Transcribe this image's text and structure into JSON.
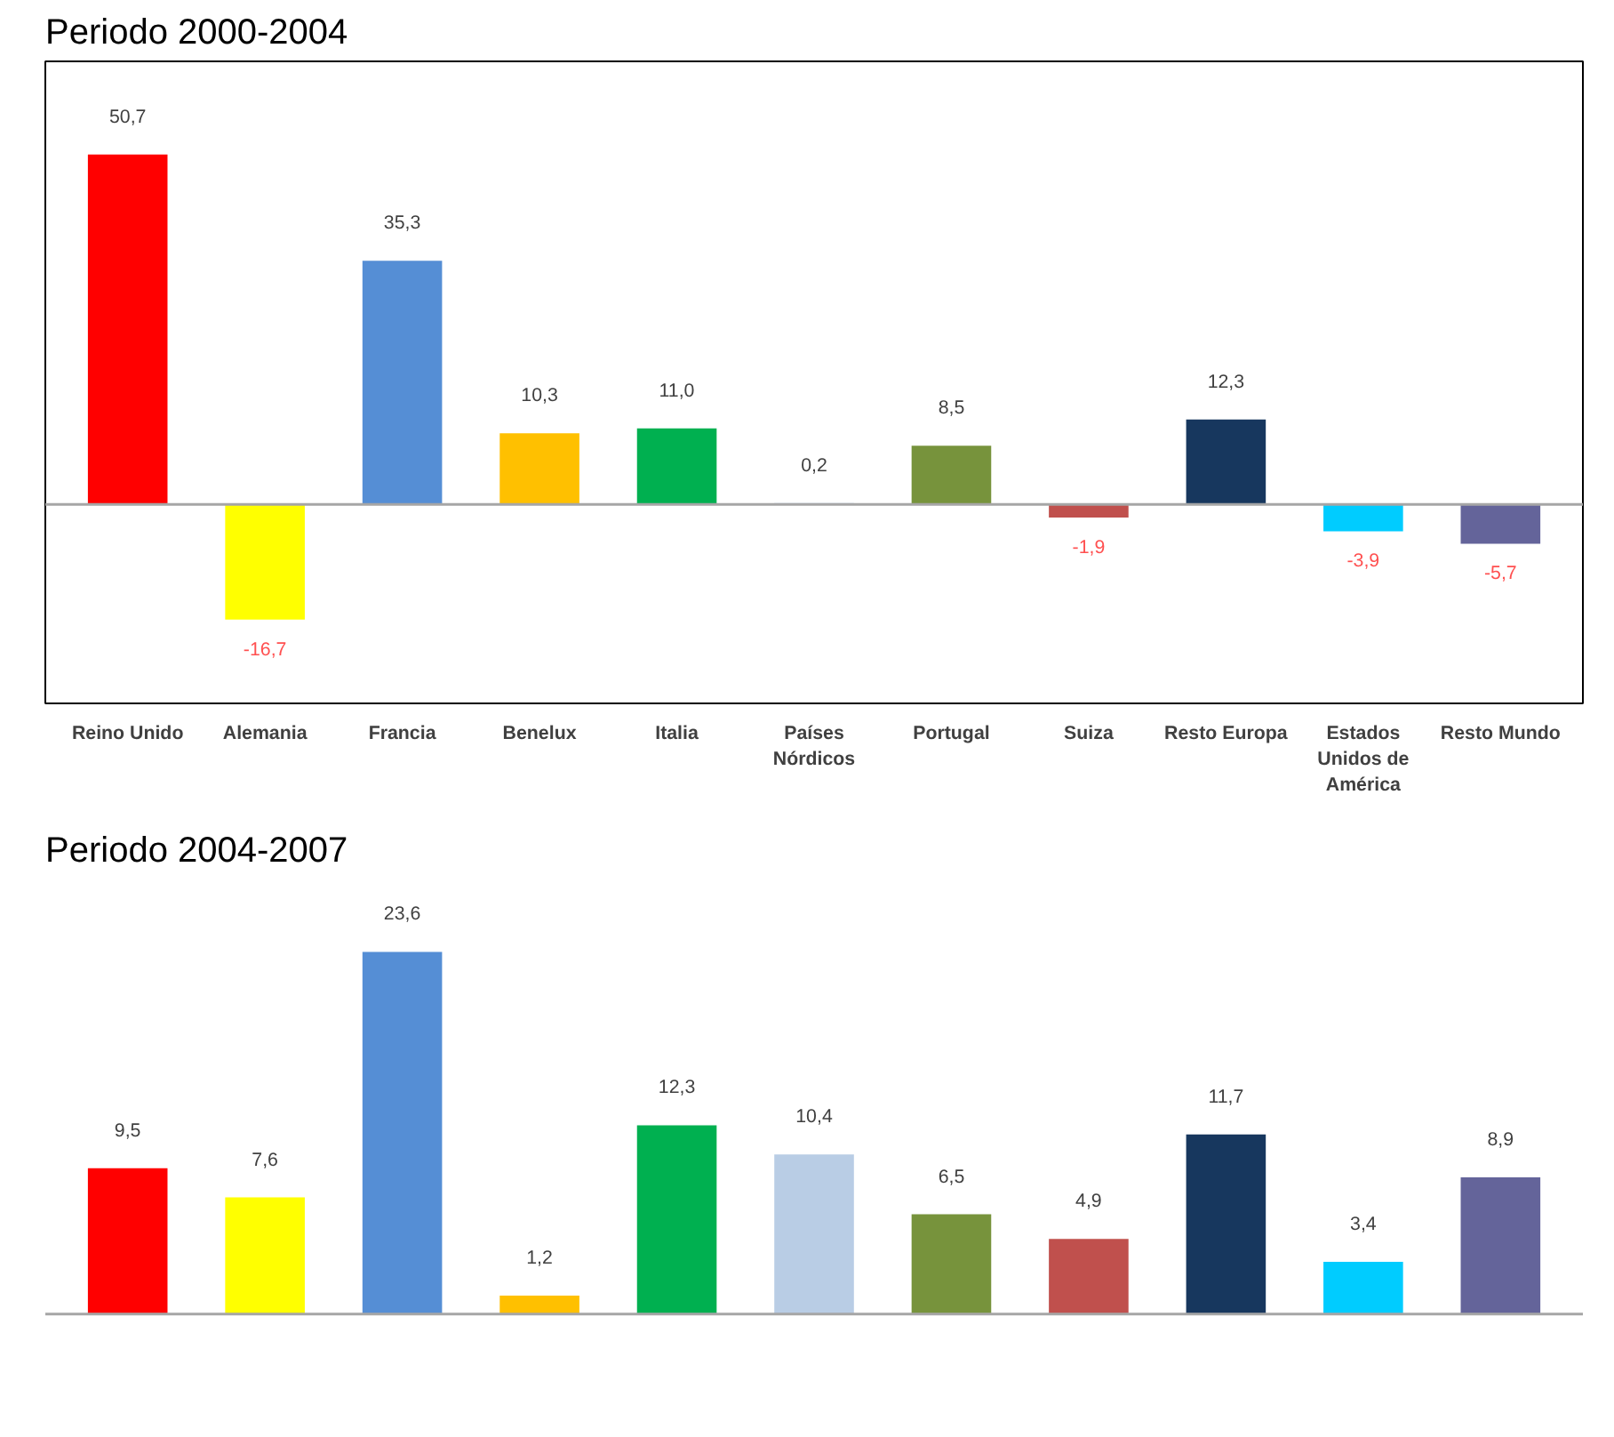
{
  "chart_data": [
    {
      "type": "bar",
      "title": "Periodo 2000-2004",
      "categories": [
        "Reino Unido",
        "Alemania",
        "Francia",
        "Benelux",
        "Italia",
        "Países Nórdicos",
        "Portugal",
        "Suiza",
        "Resto Europa",
        "Estados Unidos de América",
        "Resto Mundo"
      ],
      "values": [
        50.7,
        -16.7,
        35.3,
        10.3,
        11.0,
        0.2,
        8.5,
        -1.9,
        12.3,
        -3.9,
        -5.7
      ],
      "value_labels": [
        "50,7",
        "-16,7",
        "35,3",
        "10,3",
        "11,0",
        "0,2",
        "8,5",
        "-1,9",
        "12,3",
        "-3,9",
        "-5,7"
      ],
      "colors": [
        "#ff0000",
        "#ffff00",
        "#558ed5",
        "#ffc000",
        "#00b050",
        "#b9cde5",
        "#77933c",
        "#c0504d",
        "#17375e",
        "#00ccff",
        "#64649a"
      ],
      "tick_labels": "x"
    },
    {
      "type": "bar",
      "title": "Periodo 2004-2007",
      "categories": [
        null,
        null,
        null,
        null,
        null,
        null,
        null,
        null,
        null,
        null,
        null
      ],
      "values": [
        9.5,
        7.6,
        23.6,
        1.2,
        12.3,
        10.4,
        6.5,
        4.9,
        11.7,
        3.4,
        8.9
      ],
      "value_labels": [
        "9,5",
        "7,6",
        "23,6",
        "1,2",
        "12,3",
        "10,4",
        "6,5",
        "4,9",
        "11,7",
        "3,4",
        "8,9"
      ],
      "colors": [
        "#ff0000",
        "#ffff00",
        "#558ed5",
        "#ffc000",
        "#00b050",
        "#b9cde5",
        "#77933c",
        "#c0504d",
        "#17375e",
        "#00ccff",
        "#64649a"
      ],
      "tick_labels": false
    }
  ]
}
